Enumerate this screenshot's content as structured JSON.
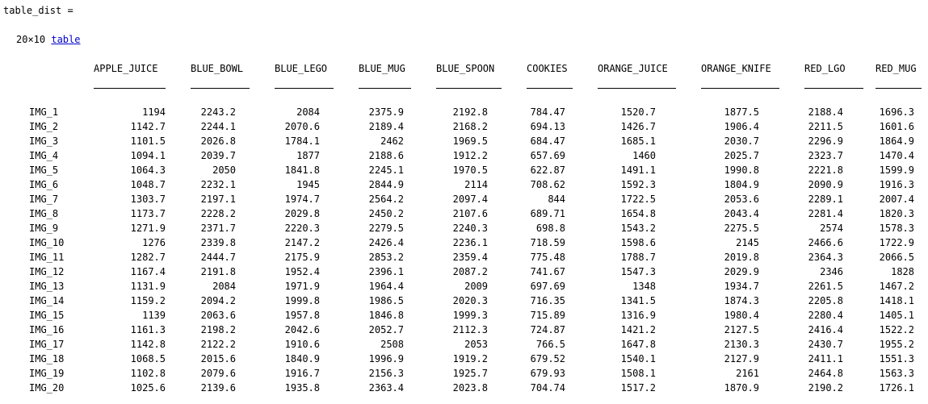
{
  "output": {
    "variable_line": "table_dist =",
    "dims_text": "20×10",
    "dims_link": "table"
  },
  "table": {
    "columns": [
      "APPLE_JUICE",
      "BLUE_BOWL",
      "BLUE_LEGO",
      "BLUE_MUG",
      "BLUE_SPOON",
      "COOKIES",
      "ORANGE_JUICE",
      "ORANGE_KNIFE",
      "RED_LGO",
      "RED_MUG"
    ],
    "rows": [
      {
        "label": "IMG_1",
        "values": [
          "1194",
          "2243.2",
          "2084",
          "2375.9",
          "2192.8",
          "784.47",
          "1520.7",
          "1877.5",
          "2188.4",
          "1696.3"
        ]
      },
      {
        "label": "IMG_2",
        "values": [
          "1142.7",
          "2244.1",
          "2070.6",
          "2189.4",
          "2168.2",
          "694.13",
          "1426.7",
          "1906.4",
          "2211.5",
          "1601.6"
        ]
      },
      {
        "label": "IMG_3",
        "values": [
          "1101.5",
          "2026.8",
          "1784.1",
          "2462",
          "1969.5",
          "684.47",
          "1685.1",
          "2030.7",
          "2296.9",
          "1864.9"
        ]
      },
      {
        "label": "IMG_4",
        "values": [
          "1094.1",
          "2039.7",
          "1877",
          "2188.6",
          "1912.2",
          "657.69",
          "1460",
          "2025.7",
          "2323.7",
          "1470.4"
        ]
      },
      {
        "label": "IMG_5",
        "values": [
          "1064.3",
          "2050",
          "1841.8",
          "2245.1",
          "1970.5",
          "622.87",
          "1491.1",
          "1990.8",
          "2221.8",
          "1599.9"
        ]
      },
      {
        "label": "IMG_6",
        "values": [
          "1048.7",
          "2232.1",
          "1945",
          "2844.9",
          "2114",
          "708.62",
          "1592.3",
          "1804.9",
          "2090.9",
          "1916.3"
        ]
      },
      {
        "label": "IMG_7",
        "values": [
          "1303.7",
          "2197.1",
          "1974.7",
          "2564.2",
          "2097.4",
          "844",
          "1722.5",
          "2053.6",
          "2289.1",
          "2007.4"
        ]
      },
      {
        "label": "IMG_8",
        "values": [
          "1173.7",
          "2228.2",
          "2029.8",
          "2450.2",
          "2107.6",
          "689.71",
          "1654.8",
          "2043.4",
          "2281.4",
          "1820.3"
        ]
      },
      {
        "label": "IMG_9",
        "values": [
          "1271.9",
          "2371.7",
          "2220.3",
          "2279.5",
          "2240.3",
          "698.8",
          "1543.2",
          "2275.5",
          "2574",
          "1578.3"
        ]
      },
      {
        "label": "IMG_10",
        "values": [
          "1276",
          "2339.8",
          "2147.2",
          "2426.4",
          "2236.1",
          "718.59",
          "1598.6",
          "2145",
          "2466.6",
          "1722.9"
        ]
      },
      {
        "label": "IMG_11",
        "values": [
          "1282.7",
          "2444.7",
          "2175.9",
          "2853.2",
          "2359.4",
          "775.48",
          "1788.7",
          "2019.8",
          "2364.3",
          "2066.5"
        ]
      },
      {
        "label": "IMG_12",
        "values": [
          "1167.4",
          "2191.8",
          "1952.4",
          "2396.1",
          "2087.2",
          "741.67",
          "1547.3",
          "2029.9",
          "2346",
          "1828"
        ]
      },
      {
        "label": "IMG_13",
        "values": [
          "1131.9",
          "2084",
          "1971.9",
          "1964.4",
          "2009",
          "697.69",
          "1348",
          "1934.7",
          "2261.5",
          "1467.2"
        ]
      },
      {
        "label": "IMG_14",
        "values": [
          "1159.2",
          "2094.2",
          "1999.8",
          "1986.5",
          "2020.3",
          "716.35",
          "1341.5",
          "1874.3",
          "2205.8",
          "1418.1"
        ]
      },
      {
        "label": "IMG_15",
        "values": [
          "1139",
          "2063.6",
          "1957.8",
          "1846.8",
          "1999.3",
          "715.89",
          "1316.9",
          "1980.4",
          "2280.4",
          "1405.1"
        ]
      },
      {
        "label": "IMG_16",
        "values": [
          "1161.3",
          "2198.2",
          "2042.6",
          "2052.7",
          "2112.3",
          "724.87",
          "1421.2",
          "2127.5",
          "2416.4",
          "1522.2"
        ]
      },
      {
        "label": "IMG_17",
        "values": [
          "1142.8",
          "2122.2",
          "1910.6",
          "2508",
          "2053",
          "766.5",
          "1647.8",
          "2130.3",
          "2430.7",
          "1955.2"
        ]
      },
      {
        "label": "IMG_18",
        "values": [
          "1068.5",
          "2015.6",
          "1840.9",
          "1996.9",
          "1919.2",
          "679.52",
          "1540.1",
          "2127.9",
          "2411.1",
          "1551.3"
        ]
      },
      {
        "label": "IMG_19",
        "values": [
          "1102.8",
          "2079.6",
          "1916.7",
          "2156.3",
          "1925.7",
          "679.93",
          "1508.1",
          "2161",
          "2464.8",
          "1563.3"
        ]
      },
      {
        "label": "IMG_20",
        "values": [
          "1025.6",
          "2139.6",
          "1935.8",
          "2363.4",
          "2023.8",
          "704.74",
          "1517.2",
          "1870.9",
          "2190.2",
          "1726.1"
        ]
      }
    ]
  }
}
